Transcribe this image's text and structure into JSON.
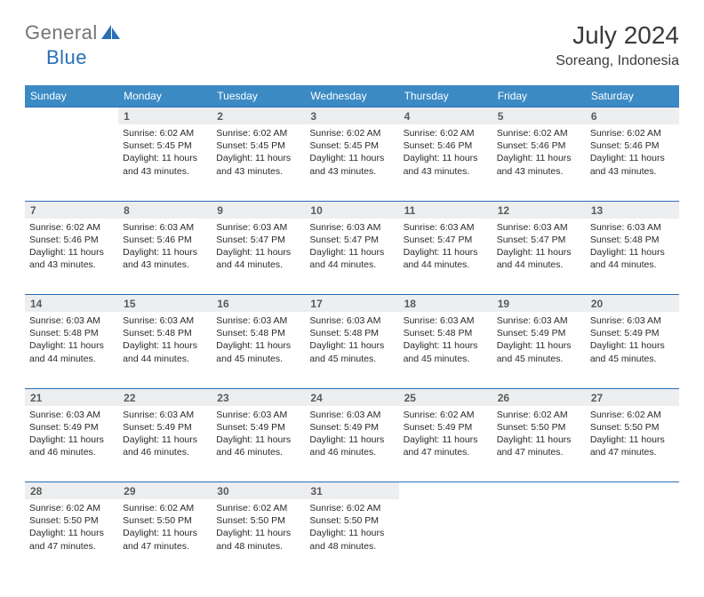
{
  "logo": {
    "part1": "General",
    "part2": "Blue"
  },
  "title": "July 2024",
  "location": "Soreang, Indonesia",
  "colors": {
    "header_bg": "#3b8ac4",
    "header_text": "#ffffff",
    "daynum_bg": "#eceef0",
    "rule": "#2a6fb5",
    "logo_gray": "#757575",
    "logo_blue": "#2a6fb5"
  },
  "days_of_week": [
    "Sunday",
    "Monday",
    "Tuesday",
    "Wednesday",
    "Thursday",
    "Friday",
    "Saturday"
  ],
  "start_offset": 1,
  "num_days": 31,
  "cells": {
    "1": {
      "sunrise": "6:02 AM",
      "sunset": "5:45 PM",
      "daylight_h": 11,
      "daylight_m": 43
    },
    "2": {
      "sunrise": "6:02 AM",
      "sunset": "5:45 PM",
      "daylight_h": 11,
      "daylight_m": 43
    },
    "3": {
      "sunrise": "6:02 AM",
      "sunset": "5:45 PM",
      "daylight_h": 11,
      "daylight_m": 43
    },
    "4": {
      "sunrise": "6:02 AM",
      "sunset": "5:46 PM",
      "daylight_h": 11,
      "daylight_m": 43
    },
    "5": {
      "sunrise": "6:02 AM",
      "sunset": "5:46 PM",
      "daylight_h": 11,
      "daylight_m": 43
    },
    "6": {
      "sunrise": "6:02 AM",
      "sunset": "5:46 PM",
      "daylight_h": 11,
      "daylight_m": 43
    },
    "7": {
      "sunrise": "6:02 AM",
      "sunset": "5:46 PM",
      "daylight_h": 11,
      "daylight_m": 43
    },
    "8": {
      "sunrise": "6:03 AM",
      "sunset": "5:46 PM",
      "daylight_h": 11,
      "daylight_m": 43
    },
    "9": {
      "sunrise": "6:03 AM",
      "sunset": "5:47 PM",
      "daylight_h": 11,
      "daylight_m": 44
    },
    "10": {
      "sunrise": "6:03 AM",
      "sunset": "5:47 PM",
      "daylight_h": 11,
      "daylight_m": 44
    },
    "11": {
      "sunrise": "6:03 AM",
      "sunset": "5:47 PM",
      "daylight_h": 11,
      "daylight_m": 44
    },
    "12": {
      "sunrise": "6:03 AM",
      "sunset": "5:47 PM",
      "daylight_h": 11,
      "daylight_m": 44
    },
    "13": {
      "sunrise": "6:03 AM",
      "sunset": "5:48 PM",
      "daylight_h": 11,
      "daylight_m": 44
    },
    "14": {
      "sunrise": "6:03 AM",
      "sunset": "5:48 PM",
      "daylight_h": 11,
      "daylight_m": 44
    },
    "15": {
      "sunrise": "6:03 AM",
      "sunset": "5:48 PM",
      "daylight_h": 11,
      "daylight_m": 44
    },
    "16": {
      "sunrise": "6:03 AM",
      "sunset": "5:48 PM",
      "daylight_h": 11,
      "daylight_m": 45
    },
    "17": {
      "sunrise": "6:03 AM",
      "sunset": "5:48 PM",
      "daylight_h": 11,
      "daylight_m": 45
    },
    "18": {
      "sunrise": "6:03 AM",
      "sunset": "5:48 PM",
      "daylight_h": 11,
      "daylight_m": 45
    },
    "19": {
      "sunrise": "6:03 AM",
      "sunset": "5:49 PM",
      "daylight_h": 11,
      "daylight_m": 45
    },
    "20": {
      "sunrise": "6:03 AM",
      "sunset": "5:49 PM",
      "daylight_h": 11,
      "daylight_m": 45
    },
    "21": {
      "sunrise": "6:03 AM",
      "sunset": "5:49 PM",
      "daylight_h": 11,
      "daylight_m": 46
    },
    "22": {
      "sunrise": "6:03 AM",
      "sunset": "5:49 PM",
      "daylight_h": 11,
      "daylight_m": 46
    },
    "23": {
      "sunrise": "6:03 AM",
      "sunset": "5:49 PM",
      "daylight_h": 11,
      "daylight_m": 46
    },
    "24": {
      "sunrise": "6:03 AM",
      "sunset": "5:49 PM",
      "daylight_h": 11,
      "daylight_m": 46
    },
    "25": {
      "sunrise": "6:02 AM",
      "sunset": "5:49 PM",
      "daylight_h": 11,
      "daylight_m": 47
    },
    "26": {
      "sunrise": "6:02 AM",
      "sunset": "5:50 PM",
      "daylight_h": 11,
      "daylight_m": 47
    },
    "27": {
      "sunrise": "6:02 AM",
      "sunset": "5:50 PM",
      "daylight_h": 11,
      "daylight_m": 47
    },
    "28": {
      "sunrise": "6:02 AM",
      "sunset": "5:50 PM",
      "daylight_h": 11,
      "daylight_m": 47
    },
    "29": {
      "sunrise": "6:02 AM",
      "sunset": "5:50 PM",
      "daylight_h": 11,
      "daylight_m": 47
    },
    "30": {
      "sunrise": "6:02 AM",
      "sunset": "5:50 PM",
      "daylight_h": 11,
      "daylight_m": 48
    },
    "31": {
      "sunrise": "6:02 AM",
      "sunset": "5:50 PM",
      "daylight_h": 11,
      "daylight_m": 48
    }
  },
  "labels": {
    "sunrise": "Sunrise:",
    "sunset": "Sunset:",
    "daylight_prefix": "Daylight:",
    "hours_word": "hours",
    "and_word": "and",
    "minutes_suffix": "minutes."
  }
}
